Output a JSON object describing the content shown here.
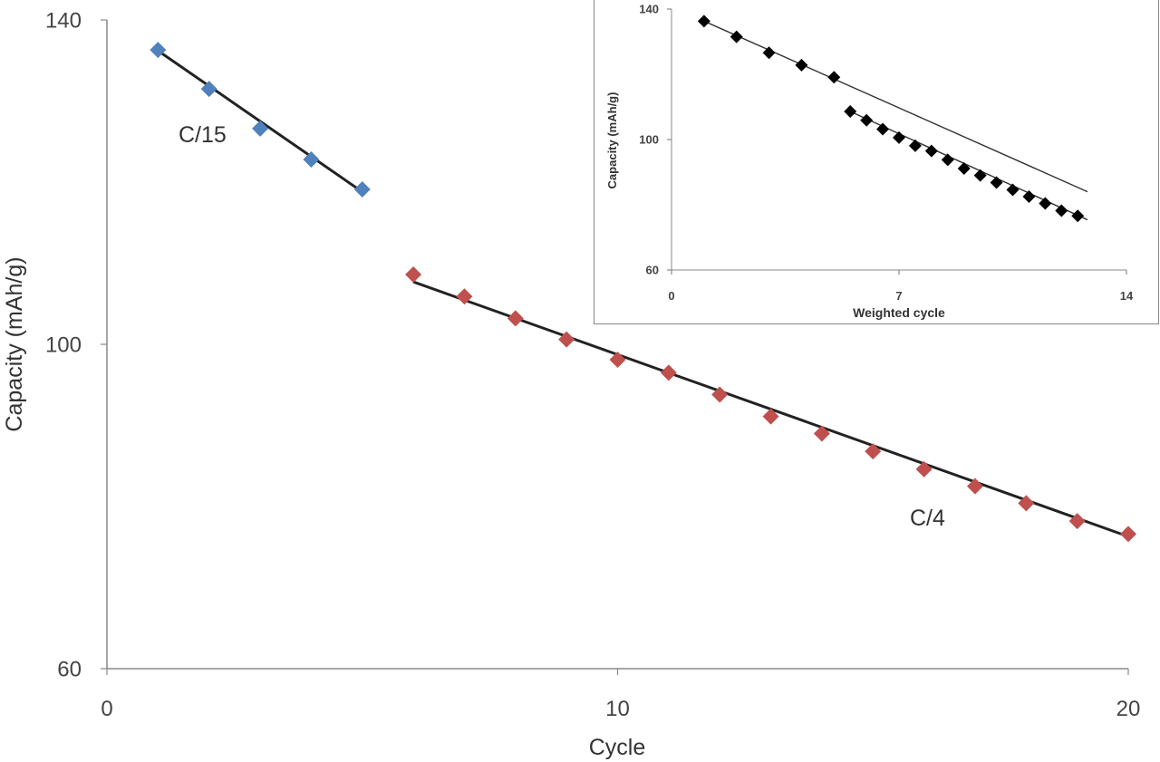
{
  "chart_data": [
    {
      "type": "scatter",
      "xlabel": "Cycle",
      "ylabel": "Capacity (mAh/g)",
      "xlim": [
        0,
        20
      ],
      "ylim": [
        60,
        140
      ],
      "x_ticks": [
        "0",
        "10",
        "20"
      ],
      "y_ticks": [
        "60",
        "100",
        "140"
      ],
      "grid": false,
      "series": [
        {
          "label": "C/15",
          "color": "#4f81bd",
          "marker": "diamond",
          "x": [
            1,
            2,
            3,
            4,
            5
          ],
          "y": [
            136.3,
            131.5,
            126.6,
            122.8,
            119.1
          ],
          "trendline": {
            "x": [
              1,
              5
            ],
            "y": [
              136.2,
              118.8
            ]
          }
        },
        {
          "label": "C/4",
          "color": "#c0504d",
          "marker": "diamond",
          "x": [
            6,
            7,
            8,
            9,
            10,
            11,
            12,
            13,
            14,
            15,
            16,
            17,
            18,
            19,
            20
          ],
          "y": [
            108.6,
            105.9,
            103.2,
            100.6,
            98.1,
            96.5,
            93.8,
            91.1,
            89.0,
            86.8,
            84.6,
            82.5,
            80.4,
            78.2,
            76.6
          ],
          "trendline": {
            "x": [
              6,
              20
            ],
            "y": [
              107.7,
              76.3
            ]
          }
        }
      ]
    },
    {
      "type": "scatter",
      "xlabel": "Weighted cycle",
      "ylabel": "Capacity (mAh/g)",
      "xlim": [
        0,
        14
      ],
      "ylim": [
        60,
        140
      ],
      "x_ticks": [
        "0",
        "7",
        "14"
      ],
      "y_ticks": [
        "60",
        "100",
        "140"
      ],
      "grid": false,
      "series": [
        {
          "color": "#000000",
          "marker": "diamond",
          "x": [
            1.0,
            2.0,
            3.0,
            4.0,
            5.0
          ],
          "y": [
            136.3,
            131.5,
            126.6,
            122.8,
            119.1
          ],
          "trendline": {
            "x": [
              1.0,
              12.8
            ],
            "y": [
              136.3,
              84.0
            ]
          }
        },
        {
          "color": "#000000",
          "marker": "diamond",
          "x": [
            5.5,
            6.0,
            6.5,
            7.0,
            7.5,
            8.0,
            8.5,
            9.0,
            9.5,
            10.0,
            10.5,
            11.0,
            11.5,
            12.0,
            12.5
          ],
          "y": [
            108.6,
            105.9,
            103.2,
            100.6,
            98.1,
            96.5,
            93.8,
            91.1,
            89.0,
            86.8,
            84.6,
            82.5,
            80.4,
            78.2,
            76.6
          ],
          "trendline": {
            "x": [
              5.5,
              12.8
            ],
            "y": [
              108.6,
              75.4
            ]
          }
        }
      ]
    }
  ]
}
